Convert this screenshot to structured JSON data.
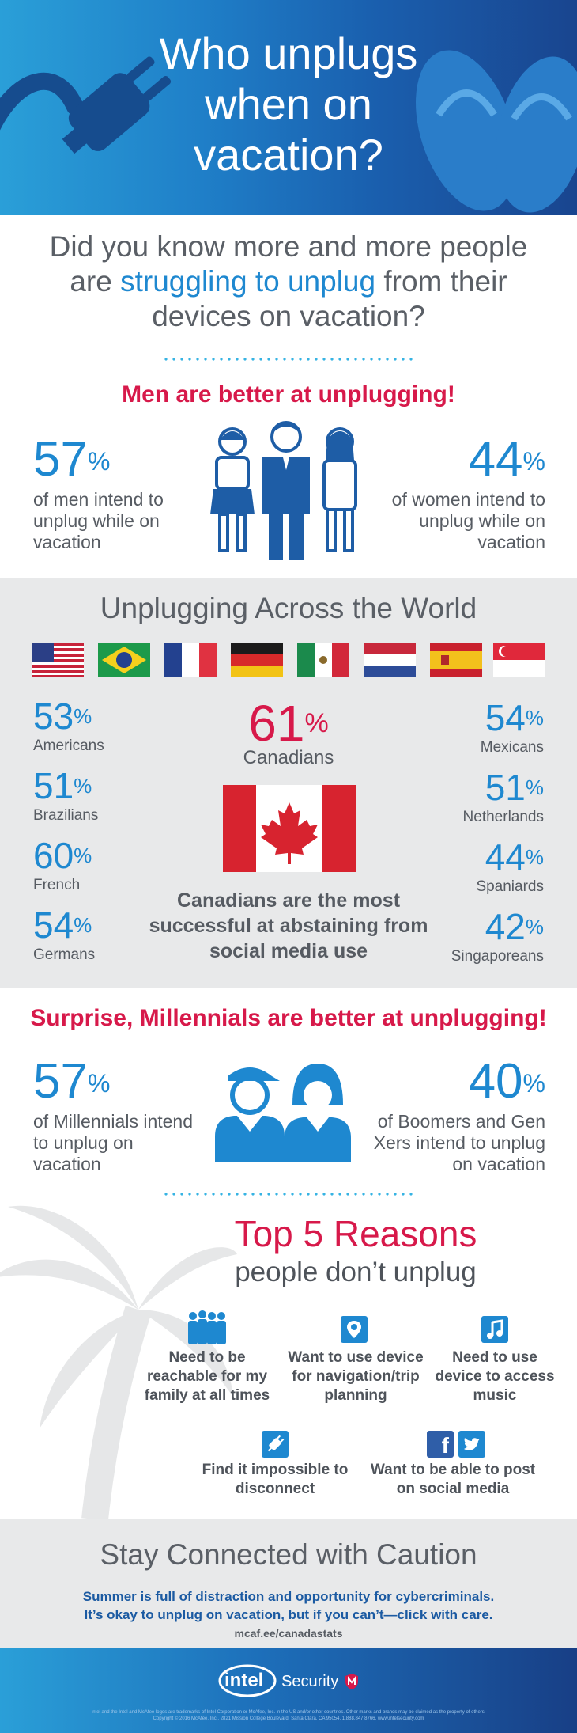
{
  "header": {
    "title_line1": "Who unplugs",
    "title_line2": "when on",
    "title_line3": "vacation?"
  },
  "intro": {
    "line1": "Did you know more and more people",
    "line2_pre": "are ",
    "line2_highlight": "struggling to unplug",
    "line2_post": " from their",
    "line3": "devices on vacation?"
  },
  "gender": {
    "heading": "Men are better at unplugging!",
    "men_value": "57",
    "men_text": "of men intend to unplug while on vacation",
    "women_value": "44",
    "women_text": "of women intend to unplug while on vacation",
    "percent_sign": "%"
  },
  "world": {
    "title": "Unplugging Across the World",
    "left": [
      {
        "value": "53",
        "label": "Americans"
      },
      {
        "value": "51",
        "label": "Brazilians"
      },
      {
        "value": "60",
        "label": "French"
      },
      {
        "value": "54",
        "label": "Germans"
      }
    ],
    "right": [
      {
        "value": "54",
        "label": "Mexicans"
      },
      {
        "value": "51",
        "label": "Netherlands"
      },
      {
        "value": "44",
        "label": "Spaniards"
      },
      {
        "value": "42",
        "label": "Singaporeans"
      }
    ],
    "canada": {
      "value": "61",
      "label": "Canadians"
    },
    "canada_note": "Canadians are the most successful at abstaining from social media use"
  },
  "generations": {
    "heading": "Surprise, Millennials are better at unplugging!",
    "millennials_value": "57",
    "millennials_text": "of Millennials intend to unplug on vacation",
    "boomers_value": "40",
    "boomers_text": "of Boomers and Gen Xers intend to unplug on vacation"
  },
  "reasons": {
    "title": "Top 5 Reasons",
    "subtitle": "people don’t unplug",
    "items": [
      {
        "text": "Need to be reachable for my family at all times",
        "icon": "family-icon"
      },
      {
        "text": "Want to use device for navigation/trip planning",
        "icon": "map-pin-icon"
      },
      {
        "text": "Need to use device to access music",
        "icon": "music-note-icon"
      },
      {
        "text": "Find it impossible to disconnect",
        "icon": "unplug-icon"
      },
      {
        "text": "Want to be able to post on social media",
        "icon": "facebook-twitter-icon"
      }
    ]
  },
  "caution": {
    "title": "Stay Connected with Caution",
    "line1": "Summer is full of distraction and opportunity for cybercriminals.",
    "line2": "It’s okay to unplug on vacation, but if you can’t—click with care.",
    "link": "mcaf.ee/canadastats"
  },
  "footer": {
    "logo_intel": "intel",
    "logo_security": "Security",
    "legal1": "Intel and the Intel and McAfee logos are trademarks of Intel Corporation or McAfee, Inc. in the US and/or other countries. Other marks and brands may be claimed as the property of others.",
    "legal2": "Copyright © 2016 McAfee, Inc., 2821 Mission College Boulevard, Santa Clara, CA 95054, 1.888.847.8766, www.intelsecurity.com"
  },
  "colors": {
    "accent_blue": "#1e88d0",
    "accent_red": "#d7194a",
    "text_gray": "#565b62",
    "panel_gray": "#e8e9ea"
  }
}
